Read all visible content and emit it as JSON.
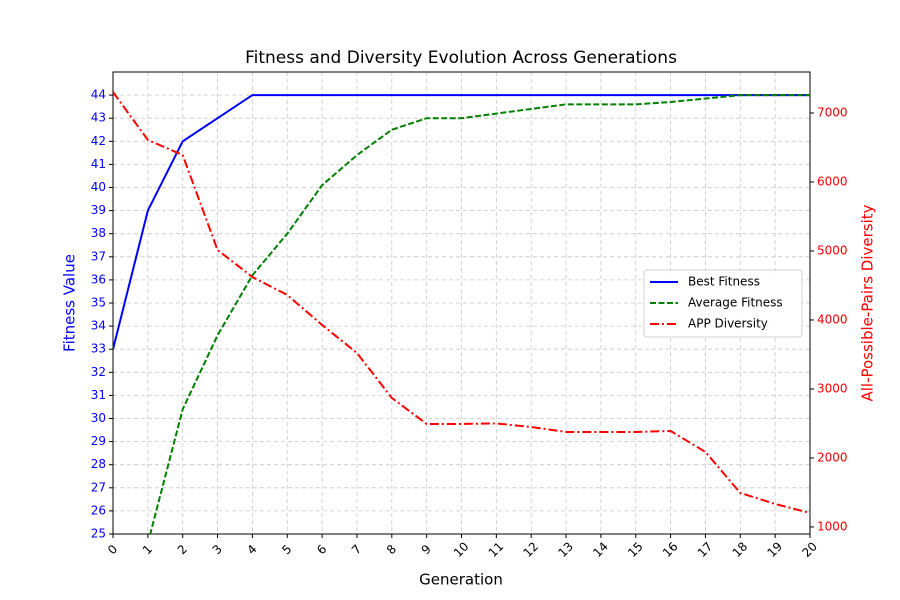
{
  "chart_data": {
    "type": "line",
    "title": "Fitness and Diversity Evolution Across Generations",
    "xlabel": "Generation",
    "ylabel": "Fitness Value",
    "y2label": "All-Possible-Pairs Diversity",
    "x": [
      0,
      1,
      2,
      3,
      4,
      5,
      6,
      7,
      8,
      9,
      10,
      11,
      12,
      13,
      14,
      15,
      16,
      17,
      18,
      19,
      20
    ],
    "series": [
      {
        "name": "Best Fitness",
        "color": "#0000ff",
        "dash": "solid",
        "axis": "y",
        "values": [
          33,
          39,
          42,
          43,
          44,
          44,
          44,
          44,
          44,
          44,
          44,
          44,
          44,
          44,
          44,
          44,
          44,
          44,
          44,
          44,
          44
        ]
      },
      {
        "name": "Average Fitness",
        "color": "#008000",
        "dash": "dashed",
        "axis": "y",
        "values": [
          null,
          24.6,
          30.4,
          33.6,
          36.2,
          38.0,
          40.1,
          41.4,
          42.5,
          43.0,
          43.0,
          43.2,
          43.4,
          43.6,
          43.6,
          43.6,
          43.7,
          43.85,
          44.0,
          44.0,
          44.0
        ]
      },
      {
        "name": "APP Diversity",
        "color": "#ff0000",
        "dash": "dashdot",
        "axis": "y2",
        "values": [
          7304,
          6609,
          6391,
          5014,
          4623,
          4362,
          3928,
          3522,
          2870,
          2493,
          2493,
          2500,
          2449,
          2377,
          2377,
          2377,
          2391,
          2087,
          1493,
          1333,
          1203
        ]
      }
    ],
    "xlim": [
      0,
      20
    ],
    "xticks": [
      0,
      1,
      2,
      3,
      4,
      5,
      6,
      7,
      8,
      9,
      10,
      11,
      12,
      13,
      14,
      15,
      16,
      17,
      18,
      19,
      20
    ],
    "ylim": [
      25,
      45
    ],
    "yticks": [
      25,
      26,
      27,
      28,
      29,
      30,
      31,
      32,
      33,
      34,
      35,
      36,
      37,
      38,
      39,
      40,
      41,
      42,
      43,
      44
    ],
    "y2lim": [
      898,
      7594
    ],
    "y2ticks": [
      1000,
      2000,
      3000,
      4000,
      5000,
      6000,
      7000
    ],
    "ycolor": "#0000ff",
    "y2color": "#ff0000",
    "grid": true,
    "legend": "center right"
  }
}
